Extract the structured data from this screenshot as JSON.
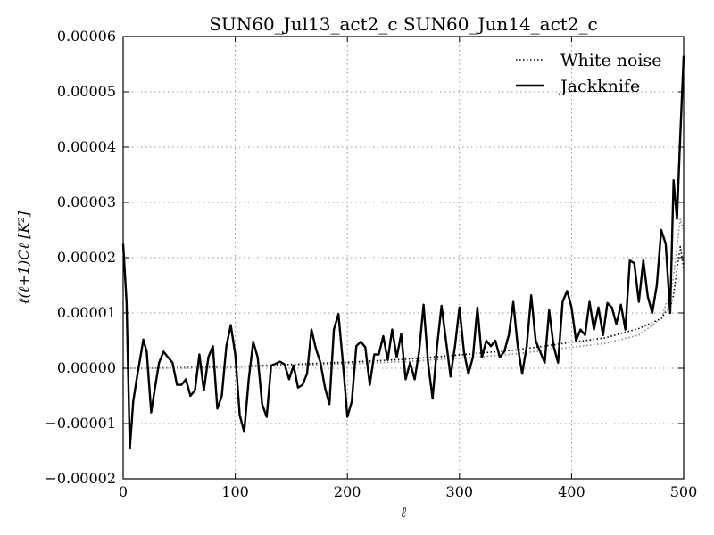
{
  "chart_data": {
    "type": "line",
    "title": "SUN60_Jul13_act2_c SUN60_Jun14_act2_c",
    "xlabel": "ℓ",
    "ylabel": "ℓ(ℓ+1)Cℓ [K²]",
    "xlim": [
      0,
      500
    ],
    "ylim": [
      -2e-05,
      6e-05
    ],
    "x_ticks": [
      0,
      100,
      200,
      300,
      400,
      500
    ],
    "x_tick_labels": [
      "0",
      "100",
      "200",
      "300",
      "400",
      "500"
    ],
    "y_ticks": [
      -2e-05,
      -1e-05,
      0,
      1e-05,
      2e-05,
      3e-05,
      4e-05,
      5e-05,
      6e-05
    ],
    "y_tick_labels": [
      "−0.00002",
      "−0.00001",
      "0.00000",
      "0.00001",
      "0.00002",
      "0.00003",
      "0.00004",
      "0.00005",
      "0.00006"
    ],
    "grid": true,
    "legend_position": "top-right",
    "series": [
      {
        "name": "White noise",
        "style": "dotted",
        "color": "#000000",
        "x": [
          0,
          20,
          50,
          100,
          150,
          200,
          250,
          300,
          350,
          400,
          430,
          460,
          480,
          490,
          497,
          500
        ],
        "y": [
          0.0,
          0.0,
          1e-07,
          3e-07,
          7e-07,
          1.1e-06,
          1.6e-06,
          2.4e-06,
          3.3e-06,
          4.7e-06,
          5.5e-06,
          7.2e-06,
          9e-06,
          1.2e-05,
          2.2e-05,
          1.8e-05
        ]
      },
      {
        "name": "White noise",
        "style": "dotted",
        "color": "#888888",
        "x": [
          0,
          20,
          50,
          100,
          150,
          200,
          250,
          300,
          350,
          400,
          430,
          460,
          480,
          490,
          497,
          500
        ],
        "y": [
          0.0,
          0.0,
          0.0,
          2e-07,
          5e-07,
          8e-07,
          1.2e-06,
          1.8e-06,
          2.6e-06,
          3.8e-06,
          4.5e-06,
          6e-06,
          9e-06,
          1.5e-05,
          2.7e-05,
          2.5e-05
        ]
      },
      {
        "name": "Jackknife",
        "style": "solid",
        "color": "#000000",
        "x": [
          0,
          3,
          6,
          9,
          12,
          15,
          18,
          21,
          25,
          28,
          32,
          36,
          40,
          44,
          48,
          52,
          56,
          60,
          64,
          68,
          72,
          76,
          80,
          84,
          88,
          92,
          96,
          100,
          104,
          108,
          112,
          116,
          120,
          124,
          128,
          132,
          136,
          140,
          144,
          148,
          152,
          156,
          160,
          164,
          168,
          172,
          176,
          180,
          184,
          188,
          192,
          196,
          200,
          204,
          208,
          212,
          216,
          220,
          224,
          228,
          232,
          236,
          240,
          244,
          248,
          252,
          256,
          260,
          264,
          268,
          272,
          276,
          280,
          284,
          288,
          292,
          296,
          300,
          304,
          308,
          312,
          316,
          320,
          324,
          328,
          332,
          336,
          340,
          344,
          348,
          352,
          356,
          360,
          364,
          368,
          372,
          376,
          380,
          384,
          388,
          392,
          396,
          400,
          404,
          408,
          412,
          416,
          420,
          424,
          428,
          432,
          436,
          440,
          444,
          448,
          452,
          456,
          460,
          464,
          468,
          472,
          476,
          480,
          484,
          488,
          491,
          494,
          497,
          500
        ],
        "y": [
          2.25e-05,
          1.2e-05,
          -1.45e-05,
          -6e-06,
          -2e-06,
          1.5e-06,
          5.2e-06,
          3e-06,
          -8e-06,
          -4e-06,
          1e-06,
          3e-06,
          2e-06,
          1e-06,
          -3e-06,
          -3e-06,
          -2e-06,
          -5e-06,
          -4e-06,
          2.5e-06,
          -4e-06,
          2e-06,
          4e-06,
          -7.3e-06,
          -5e-06,
          4e-06,
          7.8e-06,
          2.5e-06,
          -8.5e-06,
          -1.15e-05,
          -2e-06,
          4.8e-06,
          2e-06,
          -6.5e-06,
          -8.8e-06,
          5e-07,
          8e-07,
          1.2e-06,
          7e-07,
          -2e-06,
          5e-07,
          -3.5e-06,
          -3e-06,
          -1e-06,
          7e-06,
          3.5e-06,
          1e-06,
          -3.5e-06,
          -6.5e-06,
          7e-06,
          9.8e-06,
          1e-06,
          -8.8e-06,
          -6e-06,
          4e-06,
          4.8e-06,
          3.8e-06,
          -3e-06,
          2.5e-06,
          2.5e-06,
          5.8e-06,
          1.5e-06,
          7e-06,
          2e-06,
          6.2e-06,
          -2e-06,
          1e-06,
          -2e-06,
          3e-06,
          1.15e-05,
          1e-06,
          -5.5e-06,
          4e-06,
          1.13e-05,
          5e-06,
          -1.5e-06,
          4e-06,
          1.1e-05,
          3e-06,
          -1e-06,
          2e-06,
          1.1e-05,
          2e-06,
          5e-06,
          4e-06,
          5e-06,
          2e-06,
          3e-06,
          6e-06,
          1.2e-05,
          4e-06,
          -1e-06,
          4e-06,
          1.32e-05,
          5e-06,
          3e-06,
          1e-06,
          1.05e-05,
          4e-06,
          1e-06,
          1.2e-05,
          1.4e-05,
          1.1e-05,
          5e-06,
          7e-06,
          6e-06,
          1.2e-05,
          7e-06,
          1.1e-05,
          6e-06,
          1.18e-05,
          1.1e-05,
          8e-06,
          1.15e-05,
          7e-06,
          1.95e-05,
          1.9e-05,
          1.2e-05,
          1.95e-05,
          1.3e-05,
          1e-05,
          1.5e-05,
          2.5e-05,
          2.25e-05,
          1e-05,
          3.4e-05,
          2.7e-05,
          4.2e-05,
          5.65e-05
        ]
      }
    ]
  }
}
